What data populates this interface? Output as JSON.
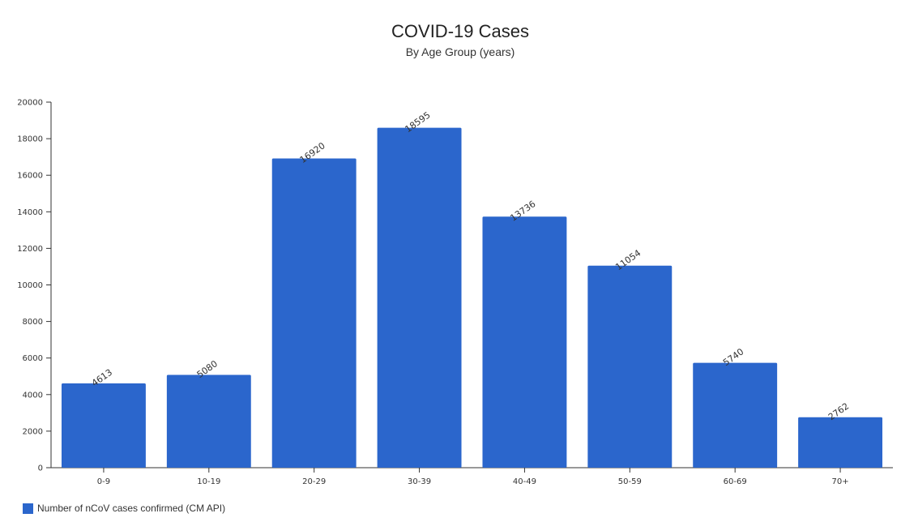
{
  "chart_data": {
    "type": "bar",
    "title": "COVID-19 Cases",
    "subtitle": "By Age Group (years)",
    "categories": [
      "0-9",
      "10-19",
      "20-29",
      "30-39",
      "40-49",
      "50-59",
      "60-69",
      "70+"
    ],
    "series": [
      {
        "name": "Number of nCoV cases confirmed (CM API)",
        "values": [
          4613,
          5080,
          16920,
          18595,
          13736,
          11054,
          5740,
          2762
        ],
        "color": "#2b66cc"
      }
    ],
    "y_ticks": [
      "0",
      "2000",
      "4000",
      "6000",
      "8000",
      "10000",
      "12000",
      "14000",
      "16000",
      "18000",
      "20000"
    ],
    "ylim": [
      0,
      20000
    ],
    "grid": false,
    "legend_position": "bottom-left",
    "data_labels": true
  }
}
